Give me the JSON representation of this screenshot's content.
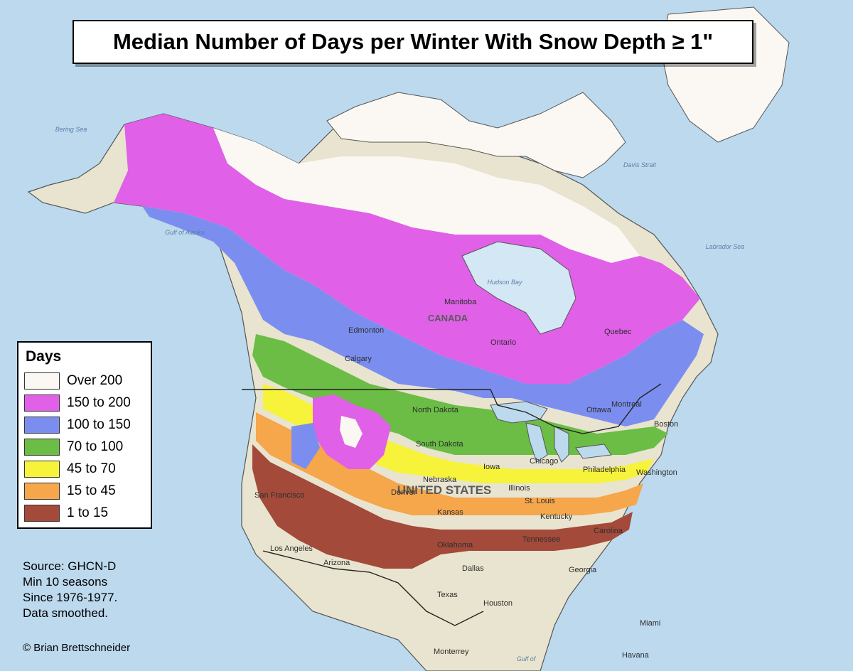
{
  "title": "Median Number of Days per Winter With Snow Depth ≥ 1\"",
  "legend": {
    "title": "Days",
    "items": [
      {
        "label": "Over 200",
        "color": "#fbf8f4"
      },
      {
        "label": "150 to 200",
        "color": "#e060e8"
      },
      {
        "label": "100 to 150",
        "color": "#7b8ef0"
      },
      {
        "label": "70 to 100",
        "color": "#6bbd45"
      },
      {
        "label": "45 to 70",
        "color": "#f6f33a"
      },
      {
        "label": "15 to 45",
        "color": "#f6a64b"
      },
      {
        "label": "1 to 15",
        "color": "#a34a3a"
      }
    ]
  },
  "source_lines": [
    "Source: GHCN-D",
    "Min 10 seasons",
    "Since 1976-1977.",
    "Data smoothed."
  ],
  "credit": "© Brian Brettschneider",
  "map_labels": {
    "canada": "CANADA",
    "united_states": "UNITED STATES",
    "hudson_bay": "Hudson Bay",
    "labrador_sea": "Labrador Sea",
    "gulf_of_alaska": "Gulf of Alaska",
    "bering_sea": "Bering Sea",
    "davis_strait": "Davis Strait",
    "gulf_of_mexico": "Gulf of",
    "edmonton": "Edmonton",
    "calgary": "Calgary",
    "manitoba": "Manitoba",
    "ontario": "Ontario",
    "quebec": "Quebec",
    "north_dakota": "North Dakota",
    "south_dakota": "South Dakota",
    "nebraska": "Nebraska",
    "kansas": "Kansas",
    "iowa": "Iowa",
    "illinois": "Illinois",
    "chicago": "Chicago",
    "ottawa": "Ottawa",
    "montreal": "Montreal",
    "boston": "Boston",
    "washington": "Washington",
    "philadelphia": "Philadelphia",
    "denver": "Denver",
    "san_francisco": "San Francisco",
    "los_angeles": "Los Angeles",
    "arizona": "Arizona",
    "oklahoma": "Oklahoma",
    "dallas": "Dallas",
    "texas": "Texas",
    "houston": "Houston",
    "kentucky": "Kentucky",
    "tennessee": "Tennessee",
    "north_carolina": "Carolina",
    "georgia": "Georgia",
    "miami": "Miami",
    "havana": "Havana",
    "monterrey": "Monterrey",
    "st_louis": "St. Louis"
  }
}
